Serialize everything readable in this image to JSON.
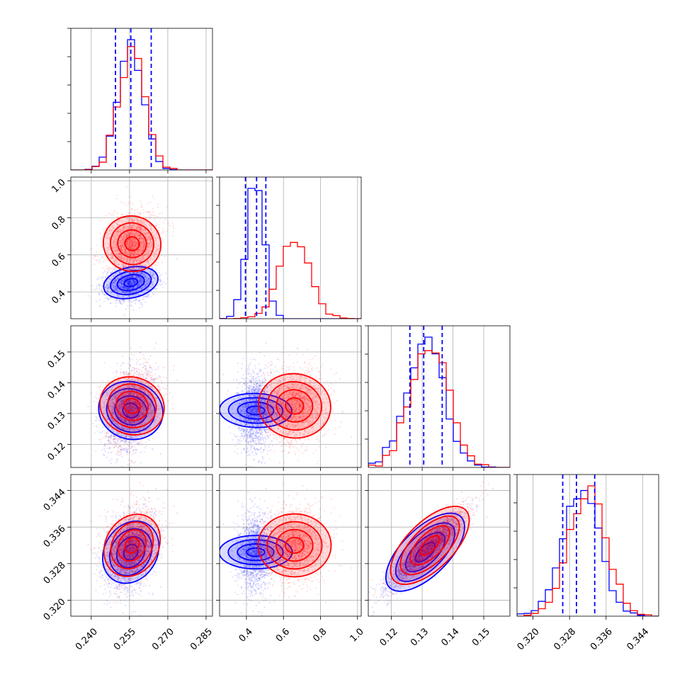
{
  "chart_data": {
    "type": "scatter",
    "subtype": "corner-plot",
    "title": "",
    "grid": true,
    "colors": {
      "run_a": "#0000ff",
      "run_b": "#ff0000"
    },
    "series": [
      {
        "color": "#0000ff",
        "means": [
          0.2555,
          0.45,
          0.131,
          0.3305
        ],
        "stds": [
          0.005,
          0.045,
          0.006,
          0.004
        ]
      },
      {
        "color": "#ff0000",
        "means": [
          0.256,
          0.66,
          0.1325,
          0.332
        ],
        "stds": [
          0.005,
          0.085,
          0.006,
          0.004
        ]
      }
    ],
    "quantile_lines": {
      "color": "#0000ff",
      "values": [
        [
          0.2495,
          0.2555,
          0.2635
        ],
        [
          0.395,
          0.455,
          0.505
        ],
        [
          0.126,
          0.1305,
          0.1365
        ],
        [
          0.3265,
          0.3295,
          0.3335
        ]
      ]
    },
    "correlations": [
      [
        0.0,
        0.2,
        0.3,
        0.7
      ],
      [
        0.2,
        0.0,
        0.05,
        0.0
      ],
      [
        0.3,
        0.05,
        0.0,
        0.9
      ],
      [
        0.7,
        0.0,
        0.9,
        0.0
      ]
    ],
    "axes": [
      {
        "range": [
          0.232,
          0.2875
        ],
        "ticks": [
          0.24,
          0.255,
          0.27,
          0.285
        ],
        "tick_labels": [
          "0.240",
          "0.255",
          "0.270",
          "0.285"
        ]
      },
      {
        "range": [
          0.255,
          1.02
        ],
        "ticks": [
          0.4,
          0.6,
          0.8,
          1.0
        ],
        "tick_labels": [
          "0.4",
          "0.6",
          "0.8",
          "1.0"
        ]
      },
      {
        "range": [
          0.1125,
          0.1585
        ],
        "ticks": [
          0.12,
          0.13,
          0.14,
          0.15
        ],
        "tick_labels": [
          "0.12",
          "0.13",
          "0.14",
          "0.15"
        ]
      },
      {
        "range": [
          0.3165,
          0.3475
        ],
        "ticks": [
          0.32,
          0.328,
          0.336,
          0.344
        ],
        "tick_labels": [
          "0.320",
          "0.328",
          "0.336",
          "0.344"
        ]
      }
    ]
  }
}
